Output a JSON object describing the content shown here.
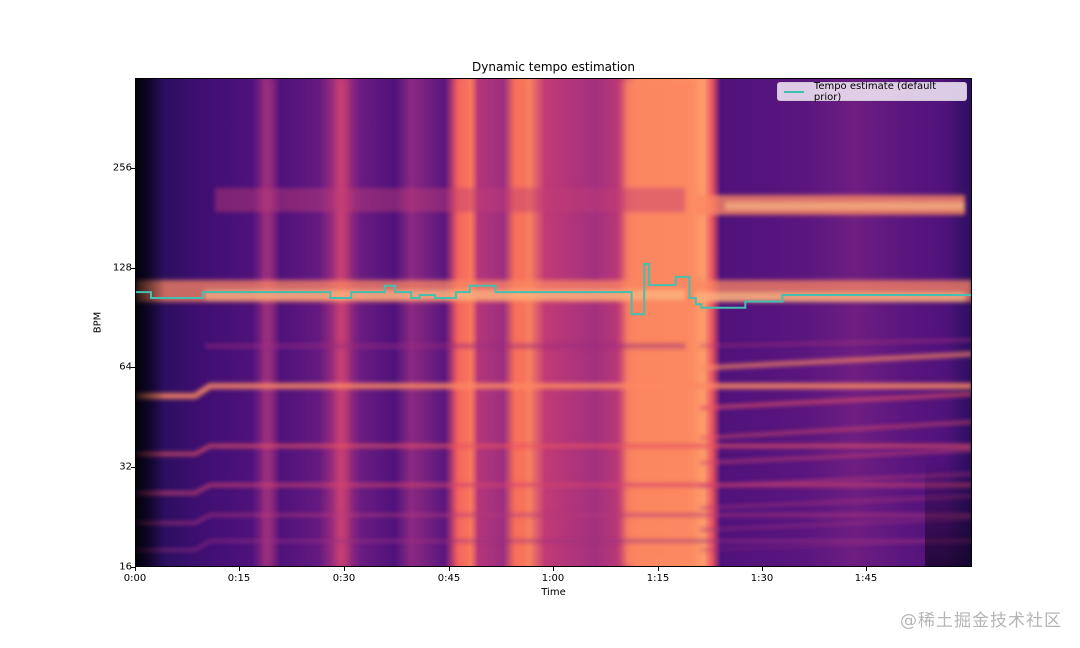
{
  "title": "Dynamic tempo estimation",
  "colors": {
    "tempo_line": "#45bfb0",
    "colormap": [
      "#000004",
      "#1c1044",
      "#4f127b",
      "#812581",
      "#b5367a",
      "#e55064",
      "#fb8761",
      "#fec287",
      "#fcfdbf"
    ]
  },
  "axes": {
    "xlabel": "Time",
    "ylabel": "BPM",
    "xticks": [
      "0:00",
      "0:15",
      "0:30",
      "0:45",
      "1:00",
      "1:15",
      "1:30",
      "1:45"
    ],
    "yticks": [
      "256",
      "128",
      "64",
      "32",
      "16"
    ]
  },
  "legend": {
    "entries": [
      {
        "label": "Tempo estimate (default prior)",
        "color": "#45bfb0"
      }
    ]
  },
  "watermark": "@稀土掘金技术社区",
  "chart_data": {
    "type": "heatmap",
    "title": "Dynamic tempo estimation",
    "xlabel": "Time",
    "ylabel": "BPM",
    "x_range_seconds": [
      0,
      120
    ],
    "y_scale": "log2",
    "ylim": [
      16,
      512
    ],
    "xticks": [
      {
        "label": "0:00",
        "seconds": 0
      },
      {
        "label": "0:15",
        "seconds": 15
      },
      {
        "label": "0:30",
        "seconds": 30
      },
      {
        "label": "0:45",
        "seconds": 45
      },
      {
        "label": "1:00",
        "seconds": 60
      },
      {
        "label": "1:15",
        "seconds": 75
      },
      {
        "label": "1:30",
        "seconds": 90
      },
      {
        "label": "1:45",
        "seconds": 105
      }
    ],
    "yticks": [
      16,
      32,
      64,
      128,
      256
    ],
    "background": "tempogram (magma colormap)",
    "legend_position": "upper right",
    "grid": false,
    "series": [
      {
        "name": "Tempo estimate (default prior)",
        "type": "step",
        "color": "#45bfb0",
        "points": [
          {
            "t": 0.0,
            "bpm": 112.3
          },
          {
            "t": 2.3,
            "bpm": 107.7
          },
          {
            "t": 9.7,
            "bpm": 112.3
          },
          {
            "t": 28.0,
            "bpm": 107.7
          },
          {
            "t": 31.0,
            "bpm": 112.3
          },
          {
            "t": 35.8,
            "bpm": 117.5
          },
          {
            "t": 37.3,
            "bpm": 112.3
          },
          {
            "t": 39.6,
            "bpm": 107.7
          },
          {
            "t": 40.8,
            "bpm": 110.0
          },
          {
            "t": 43.0,
            "bpm": 107.7
          },
          {
            "t": 46.0,
            "bpm": 112.3
          },
          {
            "t": 48.0,
            "bpm": 117.5
          },
          {
            "t": 51.7,
            "bpm": 112.3
          },
          {
            "t": 71.2,
            "bpm": 96.0
          },
          {
            "t": 73.0,
            "bpm": 137.0
          },
          {
            "t": 73.7,
            "bpm": 118.0
          },
          {
            "t": 77.5,
            "bpm": 125.0
          },
          {
            "t": 79.5,
            "bpm": 107.7
          },
          {
            "t": 80.4,
            "bpm": 103.0
          },
          {
            "t": 81.2,
            "bpm": 100.5
          },
          {
            "t": 87.5,
            "bpm": 105.0
          },
          {
            "t": 92.8,
            "bpm": 110.0
          },
          {
            "t": 120.0,
            "bpm": 110.0
          }
        ]
      }
    ]
  }
}
